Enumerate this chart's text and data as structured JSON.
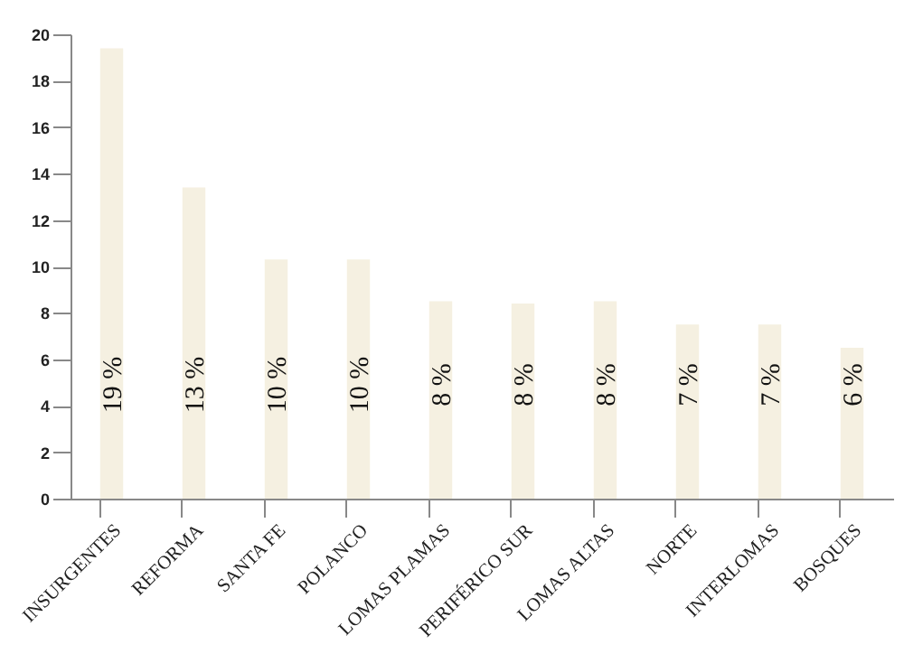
{
  "chart_data": {
    "type": "bar",
    "categories": [
      "INSURGENTES",
      "REFORMA",
      "SANTA FE",
      "POLANCO",
      "LOMAS PLAMAS",
      "PERIFÉRICO SUR",
      "LOMAS ALTAS",
      "NORTE",
      "INTERLOMAS",
      "BOSQUES"
    ],
    "values": [
      19.4,
      13.4,
      10.3,
      10.3,
      8.5,
      8.4,
      8.5,
      7.5,
      7.5,
      6.5
    ],
    "value_labels": [
      "19 %",
      "13 %",
      "10 %",
      "10 %",
      "8 %",
      "8 %",
      "8 %",
      "7 %",
      "7 %",
      "6 %"
    ],
    "color": "#f5f0e1",
    "ylim": [
      0,
      20
    ],
    "yticks": [
      0,
      2,
      4,
      6,
      8,
      10,
      12,
      14,
      16,
      18,
      20
    ],
    "grid": false
  }
}
